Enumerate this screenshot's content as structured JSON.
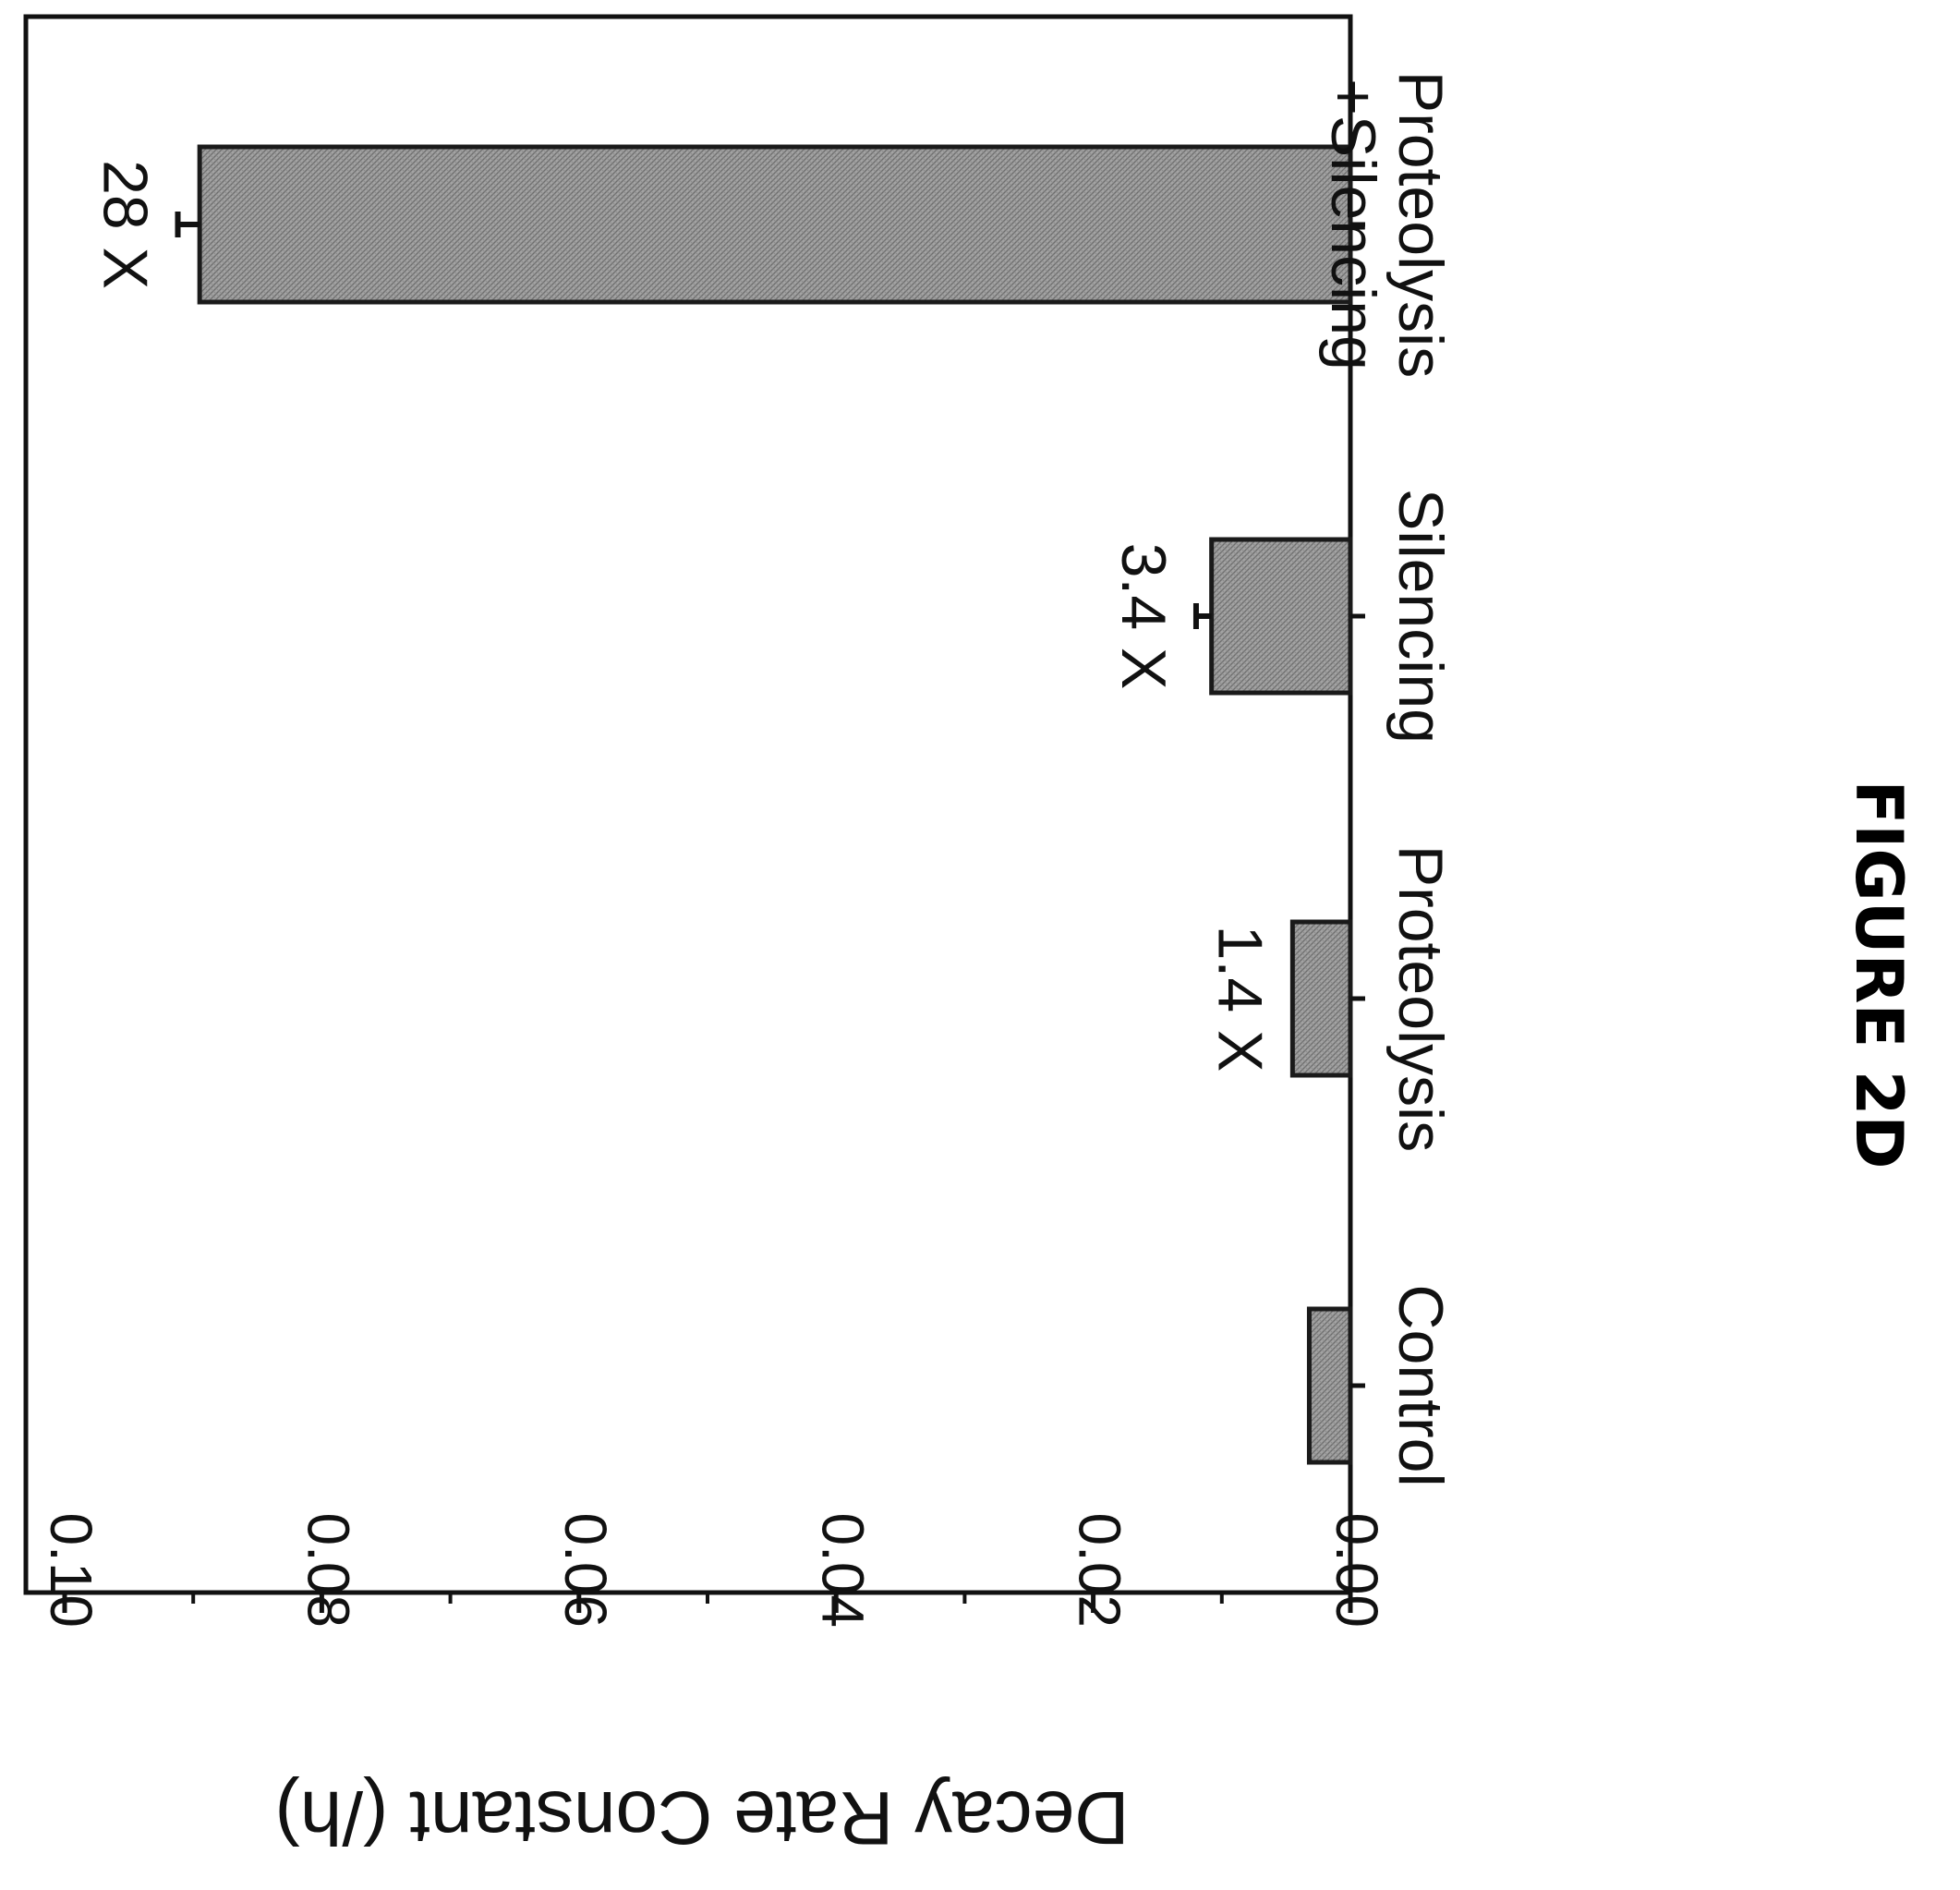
{
  "figure_label": "FIGURE 2D",
  "chart_data": {
    "type": "bar",
    "orientation": "rotated",
    "categories": [
      "Control",
      "Proteolysis",
      "Silencing",
      "Proteolysis\n+Silencing"
    ],
    "values": [
      0.0032,
      0.0045,
      0.0108,
      0.0895
    ],
    "errors": [
      0.0,
      0.0,
      0.0012,
      0.0017
    ],
    "annotations": [
      "",
      "1.4 X",
      "3.4 X",
      "28 X"
    ],
    "ylabel": "Decay Rate Constant (/h)",
    "ylim": [
      0.0,
      0.1
    ],
    "yticks": [
      "0.00",
      "0.02",
      "0.04",
      "0.06",
      "0.08",
      "0.10"
    ],
    "ytick_values": [
      0.0,
      0.02,
      0.04,
      0.06,
      0.08,
      0.1
    ],
    "grid": false,
    "bar_color": "#9a9a9a",
    "bar_fill": "crosshatch"
  }
}
